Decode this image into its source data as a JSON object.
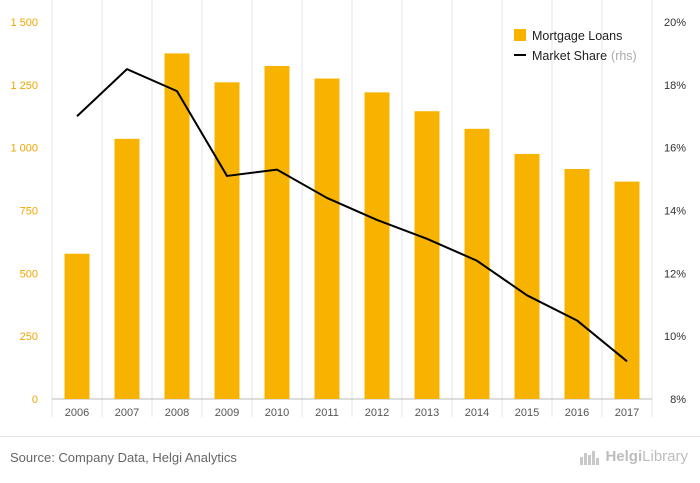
{
  "chart_data": {
    "type": "bar",
    "categories": [
      "2006",
      "2007",
      "2008",
      "2009",
      "2010",
      "2011",
      "2012",
      "2013",
      "2014",
      "2015",
      "2016",
      "2017"
    ],
    "series": [
      {
        "name": "Mortgage Loans",
        "type": "bar",
        "axis": "left",
        "values": [
          578,
          1035,
          1375,
          1260,
          1325,
          1275,
          1220,
          1145,
          1075,
          975,
          915,
          865
        ]
      },
      {
        "name": "Market Share",
        "name_suffix": "(rhs)",
        "type": "line",
        "axis": "right",
        "values": [
          17.0,
          18.5,
          17.8,
          15.1,
          15.3,
          14.4,
          13.7,
          13.1,
          12.4,
          11.3,
          10.5,
          9.2
        ]
      }
    ],
    "y_left": {
      "ylim": [
        0,
        1500
      ],
      "ticks": [
        "0",
        "250",
        "500",
        "750",
        "1 000",
        "1 250",
        "1 500"
      ]
    },
    "y_right": {
      "ylim": [
        8,
        20
      ],
      "ticks": [
        "8%",
        "10%",
        "12%",
        "14%",
        "16%",
        "18%",
        "20%"
      ]
    },
    "legend_position": "top-right",
    "grid": "vertical",
    "colors": {
      "bar": "#f8b300",
      "line": "#000000",
      "left_tick": "#f0a500",
      "right_tick": "#333333",
      "grid": "#e6e6e6"
    }
  },
  "footer": {
    "source": "Source: Company Data, Helgi Analytics",
    "brand_part1": "Helgi",
    "brand_part2": "Library"
  }
}
